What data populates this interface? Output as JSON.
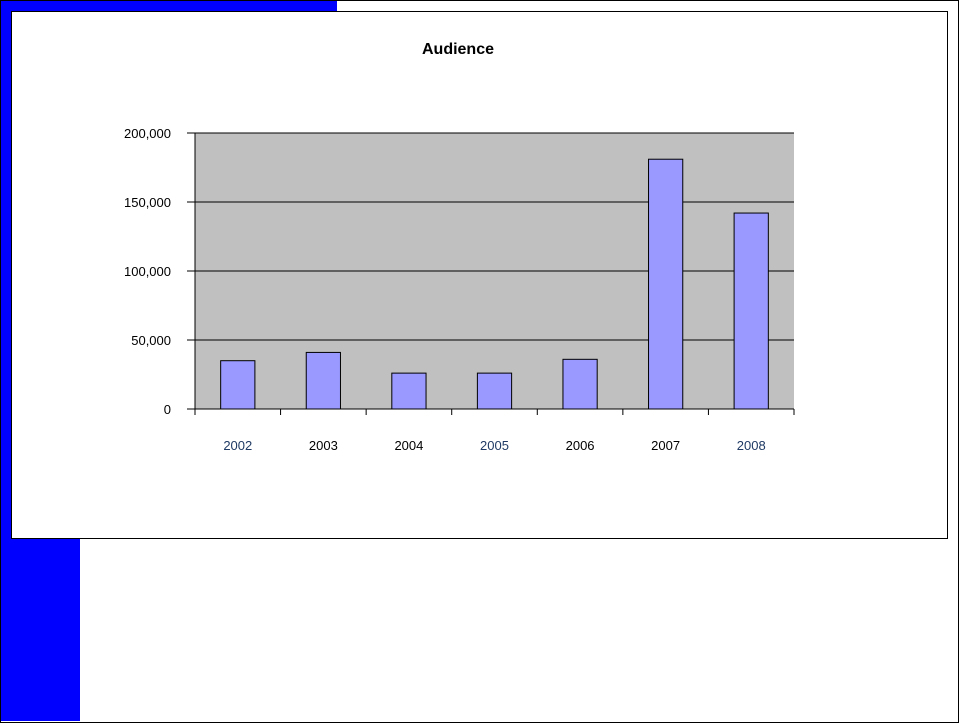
{
  "colors": {
    "accent": "#0000ff",
    "plot_background": "#c0c0c0",
    "bar_fill": "#9999ff",
    "bar_stroke": "#000000",
    "gridline": "#000000",
    "label_dark": "#000000",
    "label_navy": "#1f3a64"
  },
  "chart_data": {
    "type": "bar",
    "title": "Audience",
    "xlabel": "",
    "ylabel": "",
    "categories": [
      "2002",
      "2003",
      "2004",
      "2005",
      "2006",
      "2007",
      "2008"
    ],
    "category_label_colors": [
      "label_navy",
      "label_dark",
      "label_dark",
      "label_navy",
      "label_dark",
      "label_dark",
      "label_navy"
    ],
    "series": [
      {
        "values": [
          35000,
          41000,
          26000,
          26000,
          36000,
          181000,
          142000
        ]
      }
    ],
    "ylim": [
      0,
      200000
    ],
    "yticks": [
      0,
      50000,
      100000,
      150000,
      200000
    ],
    "ytick_labels": [
      "0",
      "50,000",
      "100,000",
      "150,000",
      "200,000"
    ],
    "grid": true,
    "legend": "none"
  }
}
